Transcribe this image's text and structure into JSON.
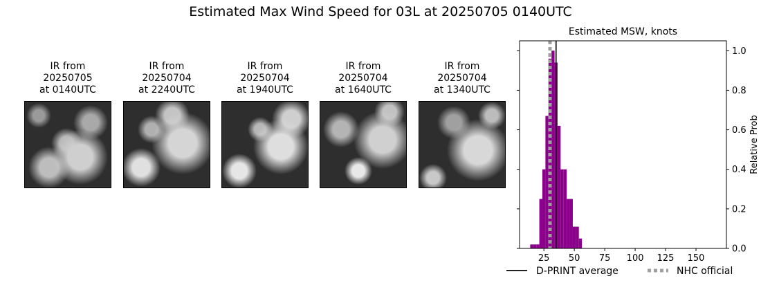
{
  "suptitle": "Estimated Max Wind Speed for 03L at 20250705 0140UTC",
  "ir_panels": [
    {
      "title": "IR from\n20250705\nat 0140UTC"
    },
    {
      "title": "IR from\n20250704\nat 2240UTC"
    },
    {
      "title": "IR from\n20250704\nat 1940UTC"
    },
    {
      "title": "IR from\n20250704\nat 1640UTC"
    },
    {
      "title": "IR from\n20250704\nat 1340UTC"
    }
  ],
  "chart_data": {
    "type": "bar",
    "title": "Estimated MSW, knots",
    "xlabel": "",
    "ylabel": "Relative Prob",
    "xlim": [
      5,
      175
    ],
    "ylim": [
      0,
      1.05
    ],
    "xticks": [
      25,
      50,
      75,
      100,
      125,
      150
    ],
    "yticks": [
      0.0,
      0.2,
      0.4,
      0.6,
      0.8,
      1.0
    ],
    "ytick_labels": [
      "0.0",
      "0.2",
      "0.4",
      "0.6",
      "0.8",
      "1.0"
    ],
    "y_axis_side": "right",
    "bin_width": 2.5,
    "bins": [
      {
        "x": 15,
        "value": 0.02
      },
      {
        "x": 17.5,
        "value": 0.02
      },
      {
        "x": 20,
        "value": 0.02
      },
      {
        "x": 22.5,
        "value": 0.25
      },
      {
        "x": 25,
        "value": 0.4
      },
      {
        "x": 27.5,
        "value": 0.67
      },
      {
        "x": 30,
        "value": 0.96
      },
      {
        "x": 32.5,
        "value": 1.0
      },
      {
        "x": 35,
        "value": 0.94
      },
      {
        "x": 37.5,
        "value": 0.62
      },
      {
        "x": 40,
        "value": 0.4
      },
      {
        "x": 42.5,
        "value": 0.4
      },
      {
        "x": 45,
        "value": 0.25
      },
      {
        "x": 47.5,
        "value": 0.25
      },
      {
        "x": 50,
        "value": 0.11
      },
      {
        "x": 52.5,
        "value": 0.11
      },
      {
        "x": 55,
        "value": 0.05
      }
    ],
    "bar_color": "#8b008b",
    "dprint_average": 35,
    "nhc_official": 30,
    "legend": [
      {
        "label": "D-PRINT average",
        "style": "solid",
        "color": "#000000"
      },
      {
        "label": "NHC official",
        "style": "dotted",
        "color": "#a0a0a0"
      }
    ],
    "legend_placement": "bottom"
  }
}
